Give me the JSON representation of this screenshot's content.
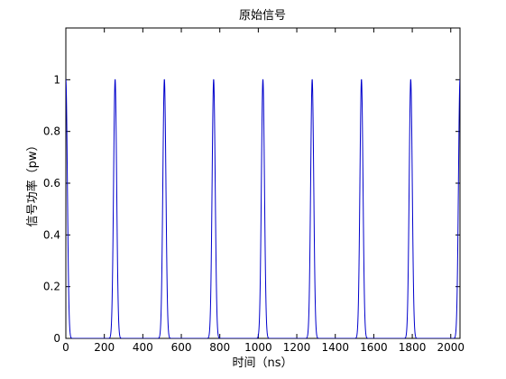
{
  "window": {
    "background": "#ffffff",
    "axes_color": "#000000"
  },
  "chart_data": {
    "type": "line",
    "title": "原始信号",
    "xlabel": "时间（ns）",
    "ylabel": "信号功率（pw）",
    "xlim": [
      0,
      2048
    ],
    "ylim": [
      0,
      1.2
    ],
    "xticks": [
      0,
      200,
      400,
      600,
      800,
      1000,
      1200,
      1400,
      1600,
      1800,
      2000
    ],
    "xtick_labels": [
      "0",
      "200",
      "400",
      "600",
      "800",
      "1000",
      "1200",
      "1400",
      "1600",
      "1800",
      "2000"
    ],
    "yticks": [
      0,
      0.2,
      0.4,
      0.6,
      0.8,
      1
    ],
    "ytick_labels": [
      "0",
      "0.2",
      "0.4",
      "0.6",
      "0.8",
      "1"
    ],
    "grid": false,
    "legend": "none",
    "series": [
      {
        "color": "#0000cc",
        "pulse_shape": "gaussian",
        "pulse_period_ns": 256,
        "pulse_width_ns": 8,
        "peaks": [
          {
            "x": 0,
            "y": 1
          },
          {
            "x": 256,
            "y": 1
          },
          {
            "x": 512,
            "y": 1
          },
          {
            "x": 768,
            "y": 1
          },
          {
            "x": 1024,
            "y": 1
          },
          {
            "x": 1280,
            "y": 1
          },
          {
            "x": 1536,
            "y": 1
          },
          {
            "x": 1792,
            "y": 1
          },
          {
            "x": 2048,
            "y": 1
          }
        ]
      }
    ]
  }
}
